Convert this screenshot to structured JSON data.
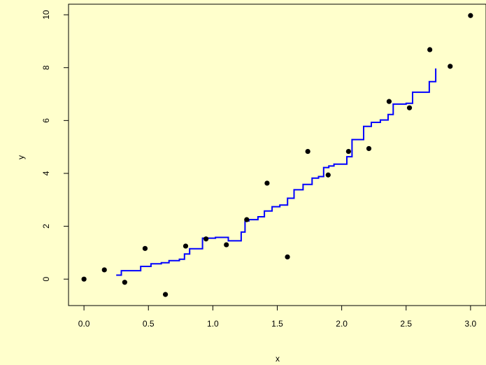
{
  "page": {
    "background": "#ffffcc"
  },
  "chart_data": {
    "type": "scatter",
    "title": "",
    "xlabel": "x",
    "ylabel": "y",
    "xlim": [
      -0.12,
      3.12
    ],
    "ylim": [
      -1.0,
      10.4
    ],
    "x_ticks": [
      0.0,
      0.5,
      1.0,
      1.5,
      2.0,
      2.5,
      3.0
    ],
    "x_tick_labels": [
      "0.0",
      "0.5",
      "1.0",
      "1.5",
      "2.0",
      "2.5",
      "3.0"
    ],
    "y_ticks": [
      0,
      2,
      4,
      6,
      8,
      10
    ],
    "y_tick_labels": [
      "0",
      "2",
      "4",
      "6",
      "8",
      "10"
    ],
    "grid": false,
    "legend": "none",
    "colors": {
      "points": "#000000",
      "line": "#0000ff",
      "axes": "#000000"
    },
    "points": {
      "x": [
        0.0,
        0.158,
        0.316,
        0.474,
        0.632,
        0.789,
        0.947,
        1.105,
        1.263,
        1.421,
        1.579,
        1.737,
        1.895,
        2.053,
        2.211,
        2.368,
        2.526,
        2.684,
        2.842,
        3.0
      ],
      "y": [
        0.0,
        0.35,
        -0.12,
        1.16,
        -0.58,
        1.25,
        1.52,
        1.3,
        2.25,
        3.63,
        0.84,
        4.83,
        3.94,
        4.83,
        4.94,
        6.72,
        6.48,
        8.68,
        8.05,
        9.97
      ]
    },
    "step_line": {
      "x": [
        0.25,
        0.29,
        0.44,
        0.52,
        0.6,
        0.66,
        0.74,
        0.78,
        0.82,
        0.92,
        1.02,
        1.12,
        1.22,
        1.25,
        1.28,
        1.35,
        1.4,
        1.46,
        1.52,
        1.58,
        1.63,
        1.7,
        1.77,
        1.82,
        1.86,
        1.9,
        1.94,
        2.04,
        2.08,
        2.17,
        2.23,
        2.3,
        2.36,
        2.4,
        2.5,
        2.55,
        2.68,
        2.73
      ],
      "y": [
        0.15,
        0.32,
        0.48,
        0.58,
        0.62,
        0.7,
        0.75,
        0.95,
        1.15,
        1.55,
        1.58,
        1.45,
        1.78,
        2.2,
        2.25,
        2.36,
        2.58,
        2.74,
        2.8,
        3.06,
        3.38,
        3.58,
        3.82,
        3.88,
        4.22,
        4.28,
        4.35,
        4.63,
        5.28,
        5.78,
        5.93,
        6.02,
        6.23,
        6.62,
        6.65,
        7.07,
        7.47,
        7.97
      ]
    }
  }
}
